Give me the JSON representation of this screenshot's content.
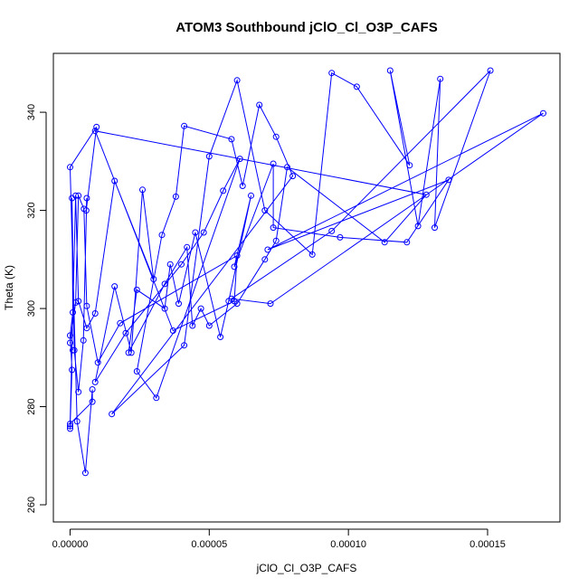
{
  "chart_data": {
    "type": "line",
    "title": "ATOM3 Southbound jClO_Cl_O3P_CAFS",
    "xlabel": "jClO_Cl_O3P_CAFS",
    "ylabel": "Theta (K)",
    "xlim": [
      -6e-06,
      0.000176
    ],
    "ylim": [
      256.5,
      352
    ],
    "x_ticks": [
      0,
      5e-05,
      0.0001,
      0.00015
    ],
    "x_tick_labels": [
      "0.00000",
      "0.00005",
      "0.00010",
      "0.00015"
    ],
    "y_ticks": [
      260,
      280,
      300,
      320,
      340
    ],
    "y_tick_labels": [
      "260",
      "280",
      "300",
      "320",
      "340"
    ],
    "grid": false,
    "marker": "open-circle",
    "color": "#0000ff",
    "series": [
      {
        "x": [
          0.0,
          0.0,
          7e-07,
          0.0,
          1e-06,
          7e-07,
          1.5e-06,
          3e-06,
          4.8e-06,
          6e-06,
          5.8e-06,
          9.5e-06,
          0.0,
          2.5e-06,
          5.5e-06,
          8e-06,
          8e-06,
          0.0,
          2e-06,
          3e-06,
          6e-06,
          9e-06,
          1.6e-05,
          3e-05,
          2.6e-05,
          2.2e-05,
          1.6e-05,
          9e-06,
          2e-05,
          4e-05,
          4.8e-05,
          5.5e-05,
          6.1e-05,
          3.1e-05,
          2.4e-05,
          3.3e-05,
          3.8e-05,
          4.1e-05,
          5.8e-05,
          6.2e-05,
          6.8e-05,
          7.4e-05,
          8e-05,
          1.5e-05,
          4.1e-05,
          5e-05,
          6e-05,
          7e-05,
          8.7e-05,
          9.4e-05,
          0.000103,
          0.000122,
          0.000115,
          0.000125,
          0.000133,
          0.000131,
          0.000151,
          9.4e-05,
          5.8e-05,
          7.2e-05,
          0.00017,
          7.1e-05,
          0.000136,
          0.000121,
          9.7e-05,
          7.3e-05,
          7.3e-05,
          5.9e-05,
          6.5e-05,
          5.7e-05,
          5.4e-05,
          4.5e-05,
          3.9e-05,
          3.6e-05,
          3.4e-05,
          2.4e-05,
          2.1e-05,
          3.4e-05,
          4.2e-05,
          4.4e-05,
          4.7e-05,
          5e-05,
          6e-05,
          7e-05,
          7.4e-05,
          7.8e-05,
          0.000113,
          0.000128,
          9e-06,
          3.7e-05,
          5.9e-05,
          6e-05,
          1.8e-05,
          1e-05,
          6e-06,
          5e-06,
          3e-06,
          2e-06,
          0.0,
          1e-06
        ],
        "y": [
          275.5,
          276.0,
          287.5,
          294.5,
          299.2,
          322.5,
          291.5,
          283.0,
          293.5,
          322.5,
          320.0,
          337.0,
          328.8,
          277.0,
          266.5,
          283.5,
          281.0,
          276.5,
          323.0,
          301.5,
          296.0,
          299.0,
          326.0,
          306.0,
          324.2,
          291.0,
          304.5,
          285.0,
          295.0,
          309.0,
          315.5,
          324.0,
          330.5,
          281.8,
          287.2,
          315.0,
          322.8,
          337.2,
          334.5,
          325.0,
          341.5,
          335.0,
          327.0,
          278.5,
          292.5,
          331.0,
          346.5,
          320.0,
          311.0,
          348.0,
          345.2,
          329.2,
          348.5,
          316.8,
          346.8,
          316.5,
          348.5,
          315.8,
          302.0,
          301.0,
          339.8,
          312.0,
          326.2,
          313.5,
          314.5,
          316.5,
          329.5,
          308.5,
          323.0,
          301.5,
          294.2,
          315.5,
          301.0,
          309.0,
          300.0,
          303.8,
          291.0,
          305.0,
          312.5,
          296.5,
          300.0,
          296.5,
          301.0,
          310.0,
          313.8,
          328.8,
          313.5,
          323.2,
          336.2,
          295.5,
          301.5,
          310.8,
          297.0,
          289.0,
          300.5,
          320.3,
          323.0,
          301.2,
          293.0,
          291.5
        ]
      }
    ]
  }
}
